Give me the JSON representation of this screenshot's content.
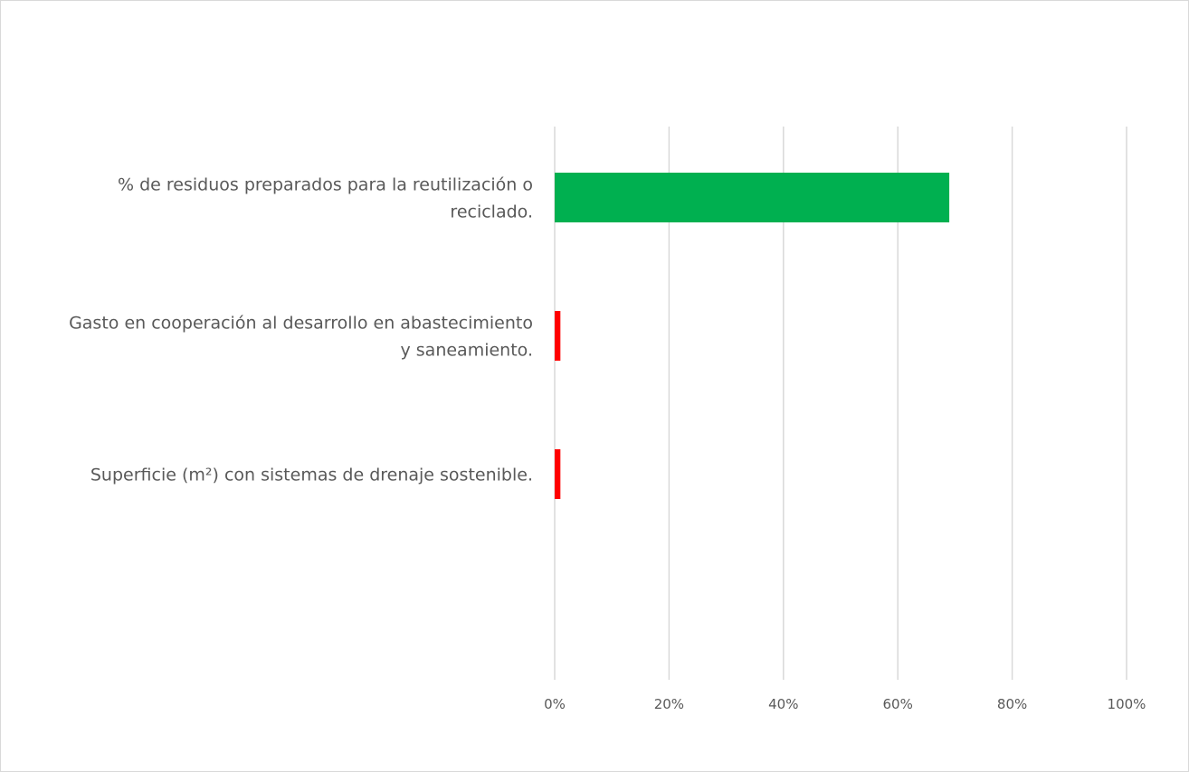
{
  "chart_data": {
    "type": "bar",
    "orientation": "horizontal",
    "categories": [
      [
        "% de residuos preparados para la reutilización o",
        "reciclado."
      ],
      [
        "Gasto en cooperación al desarrollo en abastecimiento",
        "y saneamiento."
      ],
      [
        "Superficie (m²) con sistemas de drenaje sostenible."
      ]
    ],
    "values": [
      69,
      1,
      1
    ],
    "colors": [
      "#00B050",
      "#FF0000",
      "#FF0000"
    ],
    "xlim": [
      0,
      100
    ],
    "xticks": [
      0,
      20,
      40,
      60,
      80,
      100
    ],
    "xtick_labels": [
      "0%",
      "20%",
      "40%",
      "60%",
      "80%",
      "100%"
    ],
    "grid": "vertical",
    "legend": "none"
  }
}
